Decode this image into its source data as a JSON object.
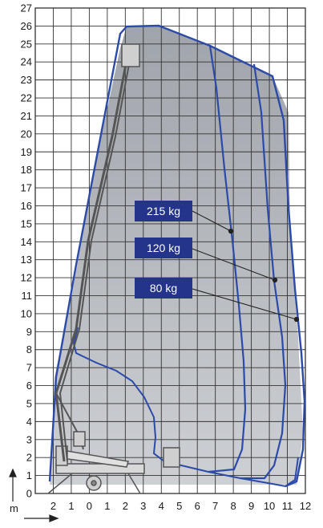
{
  "diagram": {
    "x_axis": {
      "unit_label": "m",
      "tick_labels": [
        "2",
        "1",
        "0",
        "1",
        "2",
        "3",
        "4",
        "5",
        "6",
        "7",
        "8",
        "9",
        "10",
        "11",
        "12"
      ]
    },
    "y_axis": {
      "tick_labels": [
        "0",
        "1",
        "2",
        "3",
        "4",
        "5",
        "6",
        "7",
        "8",
        "9",
        "10",
        "11",
        "12",
        "13",
        "14",
        "15",
        "16",
        "17",
        "18",
        "19",
        "20",
        "21",
        "22",
        "23",
        "24",
        "25",
        "26",
        "27"
      ]
    },
    "load_labels": [
      {
        "text": "215 kg"
      },
      {
        "text": "120 kg"
      },
      {
        "text": "80 kg"
      }
    ],
    "colors": {
      "envelope": "#2c4aa8",
      "label_fill": "#23348a",
      "shaded_area": "#b9bcc2",
      "grid": "#333333",
      "machine": "#555555"
    }
  }
}
